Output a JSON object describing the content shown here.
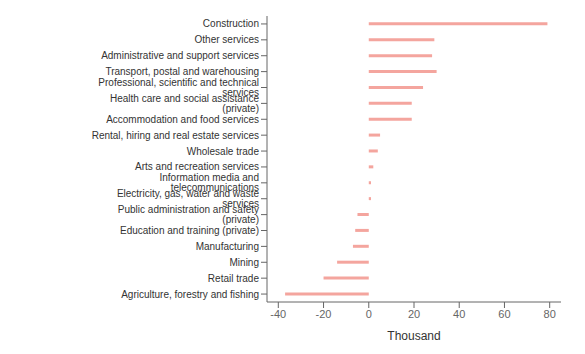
{
  "chart_data": {
    "type": "bar",
    "orientation": "horizontal",
    "categories": [
      "Agriculture, forestry and fishing",
      "Retail trade",
      "Mining",
      "Manufacturing",
      "Education and training (private)",
      "Public administration and safety (private)",
      "Electricity, gas, water and waste services",
      "Information media and telecommunications",
      "Arts and recreation services",
      "Wholesale trade",
      "Rental, hiring and real estate services",
      "Accommodation and food services",
      "Health care and social assistance (private)",
      "Professional, scientific and technical services",
      "Transport, postal and warehousing",
      "Administrative and support services",
      "Other services",
      "Construction"
    ],
    "values": [
      -37,
      -20,
      -14,
      -7,
      -6,
      -5,
      1,
      1,
      2,
      4,
      5,
      19,
      19,
      24,
      30,
      28,
      29,
      79
    ],
    "color": "#f4a59e",
    "xlabel": "Thousand",
    "xlim": [
      -45,
      85
    ],
    "xticks": [
      -40,
      -20,
      0,
      20,
      40,
      60,
      80
    ],
    "grid": false
  }
}
